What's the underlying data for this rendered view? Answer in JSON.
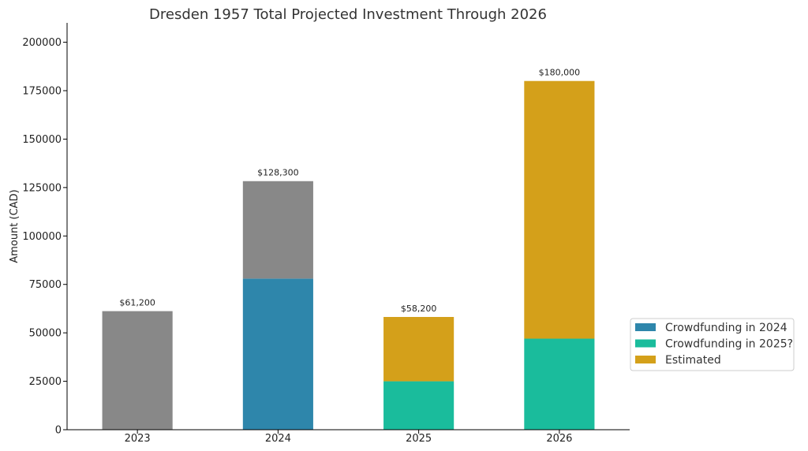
{
  "chart_data": {
    "type": "bar",
    "stacked": true,
    "title": "Dresden 1957 Total Projected Investment Through 2026",
    "xlabel": "",
    "ylabel": "Amount (CAD)",
    "ylim": [
      0,
      210000
    ],
    "y_ticks": [
      "0",
      "25000",
      "50000",
      "75000",
      "100000",
      "125000",
      "150000",
      "175000",
      "200000"
    ],
    "categories": [
      "2023",
      "2024",
      "2025",
      "2026"
    ],
    "segments": [
      {
        "category": "2023",
        "y0": 0,
        "y1": 61200,
        "color": "#888888"
      },
      {
        "category": "2024",
        "y0": 0,
        "y1": 78000,
        "color": "#2e86ab"
      },
      {
        "category": "2024",
        "y0": 78000,
        "y1": 128300,
        "color": "#888888"
      },
      {
        "category": "2025",
        "y0": 0,
        "y1": 25000,
        "color": "#1abc9c"
      },
      {
        "category": "2025",
        "y0": 25000,
        "y1": 58200,
        "color": "#d4a01a"
      },
      {
        "category": "2026",
        "y0": 0,
        "y1": 47000,
        "color": "#1abc9c"
      },
      {
        "category": "2026",
        "y0": 47000,
        "y1": 180000,
        "color": "#d4a01a"
      }
    ],
    "totals": [
      61200,
      128300,
      58200,
      180000
    ],
    "total_labels": [
      "$61,200",
      "$128,300",
      "$58,200",
      "$180,000"
    ],
    "legend": {
      "placement": "center-right outside",
      "entries": [
        {
          "name": "Crowdfunding in 2024",
          "color": "#2e86ab"
        },
        {
          "name": "Crowdfunding in 2025?",
          "color": "#1abc9c"
        },
        {
          "name": "Estimated",
          "color": "#d4a01a"
        }
      ]
    },
    "grid": false
  }
}
